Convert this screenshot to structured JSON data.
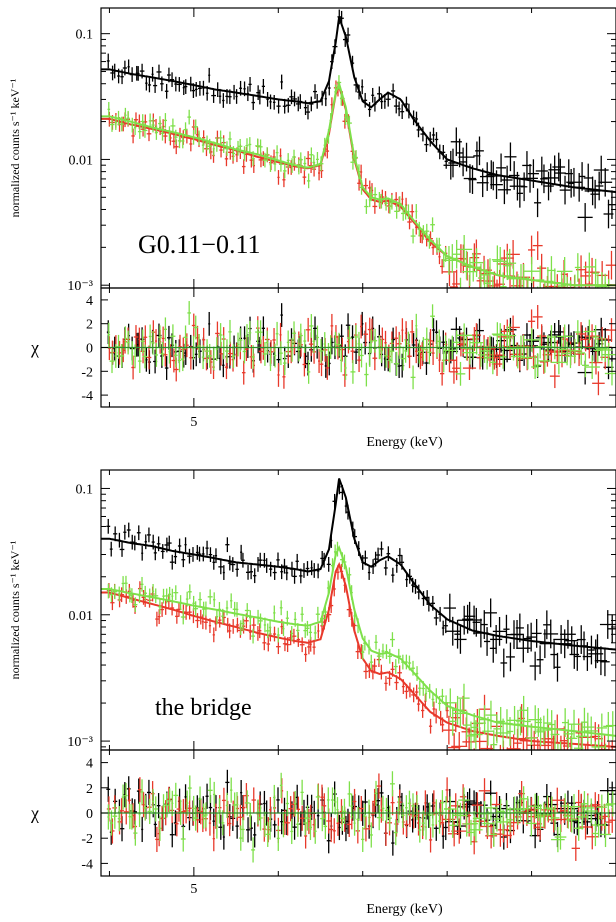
{
  "chart_data": [
    {
      "type": "line",
      "annotation": "G0.11−0.11",
      "ylabel": "normalized counts s⁻¹ keV⁻¹",
      "yscale": "log",
      "ylim": [
        0.00095,
        0.16
      ],
      "yticks": [
        {
          "value": 0.1,
          "label": "0.1"
        },
        {
          "value": 0.01,
          "label": "0.01"
        },
        {
          "value": 0.001,
          "label": "10⁻³"
        }
      ],
      "xlim": [
        3.9,
        10.0
      ],
      "series": [
        {
          "color": "#000000",
          "x": [
            4.0,
            4.25,
            4.5,
            4.75,
            5.0,
            5.25,
            5.5,
            5.75,
            6.0,
            6.2,
            6.35,
            6.5,
            6.6,
            6.68,
            6.72,
            6.8,
            6.9,
            7.0,
            7.1,
            7.2,
            7.3,
            7.45,
            7.6,
            7.8,
            8.0,
            8.3,
            8.6,
            9.0,
            9.5,
            10.0
          ],
          "y": [
            0.052,
            0.048,
            0.045,
            0.042,
            0.039,
            0.036,
            0.034,
            0.032,
            0.03,
            0.029,
            0.028,
            0.029,
            0.042,
            0.085,
            0.135,
            0.095,
            0.045,
            0.029,
            0.026,
            0.03,
            0.034,
            0.03,
            0.021,
            0.014,
            0.01,
            0.0085,
            0.0075,
            0.0068,
            0.006,
            0.0055
          ]
        },
        {
          "color": "#e8392b",
          "x": [
            4.0,
            4.25,
            4.5,
            4.75,
            5.0,
            5.25,
            5.5,
            5.75,
            6.0,
            6.2,
            6.35,
            6.5,
            6.6,
            6.68,
            6.72,
            6.8,
            6.9,
            7.0,
            7.1,
            7.2,
            7.3,
            7.45,
            7.6,
            7.8,
            8.0,
            8.3,
            8.6,
            9.0,
            9.5,
            10.0
          ],
          "y": [
            0.021,
            0.019,
            0.0175,
            0.016,
            0.0145,
            0.013,
            0.0118,
            0.0105,
            0.0095,
            0.0088,
            0.0085,
            0.009,
            0.016,
            0.033,
            0.038,
            0.025,
            0.01,
            0.0058,
            0.0048,
            0.0046,
            0.0047,
            0.0042,
            0.0032,
            0.0022,
            0.0017,
            0.0014,
            0.0012,
            0.0011,
            0.001,
            0.001
          ]
        },
        {
          "color": "#7ee04a",
          "x": [
            4.0,
            4.25,
            4.5,
            4.75,
            5.0,
            5.25,
            5.5,
            5.75,
            6.0,
            6.2,
            6.35,
            6.5,
            6.6,
            6.68,
            6.72,
            6.8,
            6.9,
            7.0,
            7.1,
            7.2,
            7.3,
            7.45,
            7.6,
            7.8,
            8.0,
            8.3,
            8.6,
            9.0,
            9.5,
            10.0
          ],
          "y": [
            0.022,
            0.02,
            0.018,
            0.0165,
            0.015,
            0.0135,
            0.012,
            0.011,
            0.0098,
            0.009,
            0.0086,
            0.0092,
            0.017,
            0.034,
            0.04,
            0.026,
            0.0105,
            0.006,
            0.005,
            0.0048,
            0.0049,
            0.0044,
            0.0033,
            0.0023,
            0.0017,
            0.0014,
            0.0012,
            0.0011,
            0.001,
            0.001
          ]
        }
      ],
      "residuals": {
        "ylabel": "χ",
        "ylim": [
          -5,
          5
        ],
        "yticks": [
          4,
          2,
          0,
          -2,
          -4
        ],
        "xticks": [
          {
            "value": 5,
            "label": "5"
          }
        ],
        "xlabel": "Energy (keV)"
      }
    },
    {
      "type": "line",
      "annotation": "the bridge",
      "ylabel": "normalized counts s⁻¹ keV⁻¹",
      "yscale": "log",
      "ylim": [
        0.00085,
        0.14
      ],
      "yticks": [
        {
          "value": 0.1,
          "label": "0.1"
        },
        {
          "value": 0.01,
          "label": "0.01"
        },
        {
          "value": 0.001,
          "label": "10⁻³"
        }
      ],
      "xlim": [
        3.9,
        10.0
      ],
      "series": [
        {
          "color": "#000000",
          "x": [
            4.0,
            4.25,
            4.5,
            4.75,
            5.0,
            5.25,
            5.5,
            5.75,
            6.0,
            6.2,
            6.35,
            6.5,
            6.6,
            6.68,
            6.72,
            6.8,
            6.9,
            7.0,
            7.1,
            7.2,
            7.3,
            7.45,
            7.6,
            7.8,
            8.0,
            8.3,
            8.6,
            9.0,
            9.5,
            10.0
          ],
          "y": [
            0.04,
            0.037,
            0.035,
            0.032,
            0.03,
            0.028,
            0.026,
            0.025,
            0.024,
            0.023,
            0.022,
            0.023,
            0.033,
            0.075,
            0.12,
            0.085,
            0.04,
            0.026,
            0.024,
            0.027,
            0.029,
            0.025,
            0.018,
            0.012,
            0.0092,
            0.0075,
            0.0068,
            0.0062,
            0.0057,
            0.0053
          ]
        },
        {
          "color": "#e8392b",
          "x": [
            4.0,
            4.25,
            4.5,
            4.75,
            5.0,
            5.25,
            5.5,
            5.75,
            6.0,
            6.2,
            6.35,
            6.5,
            6.6,
            6.68,
            6.72,
            6.8,
            6.9,
            7.0,
            7.1,
            7.2,
            7.3,
            7.45,
            7.6,
            7.8,
            8.0,
            8.3,
            8.6,
            9.0,
            9.5,
            10.0
          ],
          "y": [
            0.015,
            0.0135,
            0.0122,
            0.011,
            0.0098,
            0.0088,
            0.008,
            0.0072,
            0.0066,
            0.0062,
            0.006,
            0.0064,
            0.011,
            0.022,
            0.025,
            0.017,
            0.0075,
            0.0045,
            0.0036,
            0.0034,
            0.0035,
            0.0031,
            0.0024,
            0.0017,
            0.0014,
            0.0012,
            0.0011,
            0.001,
            0.00095,
            0.0009
          ]
        },
        {
          "color": "#7ee04a",
          "x": [
            4.0,
            4.25,
            4.5,
            4.75,
            5.0,
            5.25,
            5.5,
            5.75,
            6.0,
            6.2,
            6.35,
            6.5,
            6.6,
            6.68,
            6.72,
            6.8,
            6.9,
            7.0,
            7.1,
            7.2,
            7.3,
            7.45,
            7.6,
            7.8,
            8.0,
            8.3,
            8.6,
            9.0,
            9.5,
            10.0
          ],
          "y": [
            0.016,
            0.0148,
            0.0138,
            0.0128,
            0.0118,
            0.011,
            0.0102,
            0.0095,
            0.0088,
            0.0084,
            0.0082,
            0.0088,
            0.015,
            0.03,
            0.034,
            0.024,
            0.011,
            0.0065,
            0.0052,
            0.0049,
            0.005,
            0.0045,
            0.0035,
            0.0025,
            0.0019,
            0.0016,
            0.0014,
            0.0013,
            0.0012,
            0.0011
          ]
        }
      ],
      "residuals": {
        "ylabel": "χ",
        "ylim": [
          -5,
          5
        ],
        "yticks": [
          4,
          2,
          0,
          -2,
          -4
        ],
        "xticks": [
          {
            "value": 5,
            "label": "5"
          }
        ],
        "xlabel": "Energy (keV)"
      }
    }
  ]
}
